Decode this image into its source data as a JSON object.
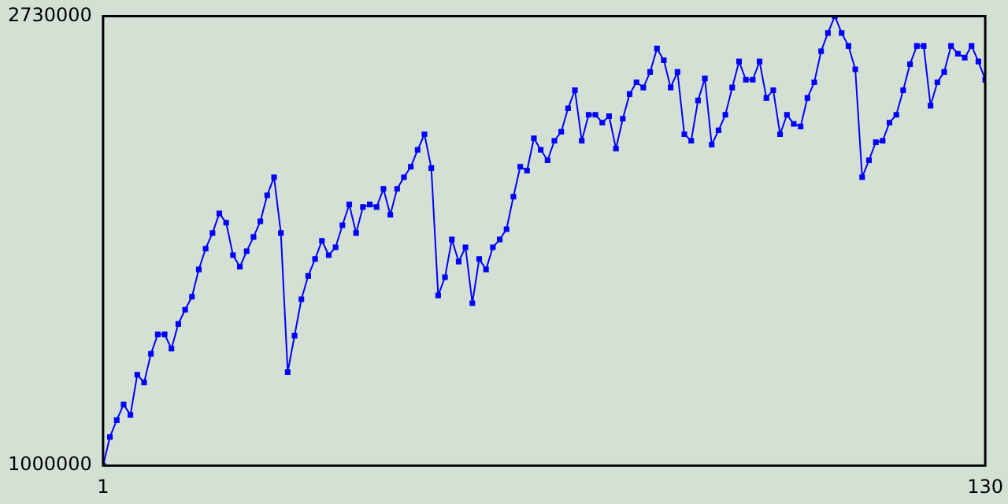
{
  "chart_data": {
    "type": "line",
    "marker": "square",
    "grid": false,
    "legend": false,
    "xlim": [
      1,
      130
    ],
    "xticks": [
      1,
      130
    ],
    "ylim": [
      1000000,
      2730000
    ],
    "yticks": [
      1000000,
      2730000
    ],
    "x": [
      1,
      2,
      3,
      4,
      5,
      6,
      7,
      8,
      9,
      10,
      11,
      12,
      13,
      14,
      15,
      16,
      17,
      18,
      19,
      20,
      21,
      22,
      23,
      24,
      25,
      26,
      27,
      28,
      29,
      30,
      31,
      32,
      33,
      34,
      35,
      36,
      37,
      38,
      39,
      40,
      41,
      42,
      43,
      44,
      45,
      46,
      47,
      48,
      49,
      50,
      51,
      52,
      53,
      54,
      55,
      56,
      57,
      58,
      59,
      60,
      61,
      62,
      63,
      64,
      65,
      66,
      67,
      68,
      69,
      70,
      71,
      72,
      73,
      74,
      75,
      76,
      77,
      78,
      79,
      80,
      81,
      82,
      83,
      84,
      85,
      86,
      87,
      88,
      89,
      90,
      91,
      92,
      93,
      94,
      95,
      96,
      97,
      98,
      99,
      100,
      101,
      102,
      103,
      104,
      105,
      106,
      107,
      108,
      109,
      110,
      111,
      112,
      113,
      114,
      115,
      116,
      117,
      118,
      119,
      120,
      121,
      122,
      123,
      124,
      125,
      126,
      127,
      128,
      129,
      130
    ],
    "series": [
      {
        "color": "#0000ff",
        "values": [
          1000000,
          1110000,
          1175000,
          1235000,
          1195000,
          1350000,
          1320000,
          1430000,
          1505000,
          1505000,
          1450000,
          1545000,
          1600000,
          1650000,
          1755000,
          1835000,
          1895000,
          1970000,
          1935000,
          1810000,
          1765000,
          1825000,
          1880000,
          1940000,
          2040000,
          2110000,
          1895000,
          1360000,
          1500000,
          1640000,
          1730000,
          1795000,
          1865000,
          1810000,
          1840000,
          1925000,
          2005000,
          1895000,
          1995000,
          2005000,
          1995000,
          2065000,
          1965000,
          2065000,
          2110000,
          2150000,
          2215000,
          2275000,
          2145000,
          1655000,
          1725000,
          1870000,
          1785000,
          1840000,
          1625000,
          1795000,
          1755000,
          1840000,
          1870000,
          1910000,
          2035000,
          2150000,
          2135000,
          2260000,
          2215000,
          2175000,
          2250000,
          2285000,
          2375000,
          2445000,
          2250000,
          2350000,
          2350000,
          2320000,
          2345000,
          2220000,
          2335000,
          2430000,
          2475000,
          2455000,
          2515000,
          2605000,
          2560000,
          2455000,
          2515000,
          2275000,
          2250000,
          2405000,
          2490000,
          2235000,
          2290000,
          2350000,
          2455000,
          2555000,
          2485000,
          2485000,
          2555000,
          2415000,
          2445000,
          2275000,
          2350000,
          2315000,
          2305000,
          2415000,
          2475000,
          2595000,
          2665000,
          2730000,
          2665000,
          2615000,
          2525000,
          2110000,
          2175000,
          2245000,
          2250000,
          2320000,
          2350000,
          2445000,
          2545000,
          2615000,
          2615000,
          2385000,
          2475000,
          2515000,
          2615000,
          2585000,
          2570000,
          2615000,
          2555000,
          2485000
        ]
      }
    ]
  }
}
